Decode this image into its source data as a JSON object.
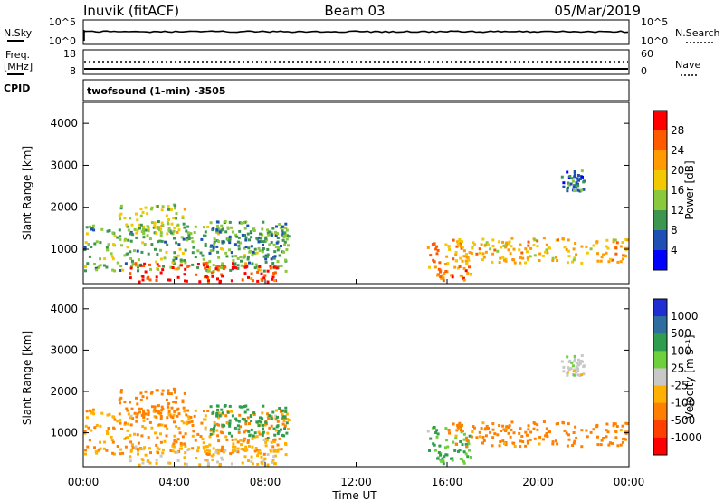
{
  "header": {
    "station": "Inuvik (fitACF)",
    "beam": "Beam 03",
    "date": "05/Mar/2019"
  },
  "noise_panel": {
    "left_label": "N.Sky",
    "right_label": "N.Search",
    "left_ticks": [
      "10^5",
      "10^0"
    ],
    "right_ticks": [
      "10^5",
      "10^0"
    ]
  },
  "freq_panel": {
    "left_label_1": "Freq.",
    "left_label_2": "[MHz]",
    "right_label": "Nave",
    "left_ticks": [
      "18",
      "8"
    ],
    "right_ticks": [
      "60",
      "0"
    ]
  },
  "cpid": {
    "label": "CPID",
    "text": "twofsound (1-min) -3505"
  },
  "power_colorbar": {
    "label": "Power [dB]",
    "ticks": [
      "28",
      "24",
      "20",
      "16",
      "12",
      "8",
      "4"
    ],
    "colors": [
      "#ff0000",
      "#ff5a00",
      "#ff9a00",
      "#f2c800",
      "#8ac83c",
      "#3c9650",
      "#1e4fb4",
      "#0000ff"
    ]
  },
  "velocity_colorbar": {
    "label": "Velocity [m s⁻¹]",
    "ticks": [
      "1000",
      "500",
      "100",
      "25",
      "-25",
      "-100",
      "-500",
      "-1000"
    ],
    "colors": [
      "#1e2ed2",
      "#2e6e9e",
      "#2e9e4e",
      "#6ed03c",
      "#c8c8c8",
      "#ffb000",
      "#ff8000",
      "#ff4000",
      "#ff0000"
    ]
  },
  "chart_data": {
    "type": "heatmap",
    "xlabel": "Time UT",
    "ylabel": "Slant Range [km]",
    "x_tick_labels": [
      "00:00",
      "04:00",
      "08:00",
      "12:00",
      "16:00",
      "20:00",
      "00:00"
    ],
    "y_tick_labels": [
      "1000",
      "2000",
      "3000",
      "4000"
    ],
    "xlim_hours": [
      0,
      24
    ],
    "ylim_km": [
      180,
      4500
    ],
    "panels": [
      "Power [dB]",
      "Velocity [m s⁻¹]"
    ],
    "scatter_regions": [
      {
        "t0": 0.0,
        "t1": 9.0,
        "r0": 500,
        "r1": 1600,
        "power": 12,
        "velocity": -100
      },
      {
        "t0": 1.5,
        "t1": 4.5,
        "r0": 1400,
        "r1": 2100,
        "power": 16,
        "velocity": -300
      },
      {
        "t0": 2.0,
        "t1": 8.5,
        "r0": 250,
        "r1": 700,
        "power": 28,
        "velocity": -40
      },
      {
        "t0": 5.5,
        "t1": 9.0,
        "r0": 900,
        "r1": 1700,
        "power": 10,
        "velocity": 300
      },
      {
        "t0": 15.0,
        "t1": 17.0,
        "r0": 250,
        "r1": 1200,
        "power": 24,
        "velocity": 100
      },
      {
        "t0": 16.0,
        "t1": 24.0,
        "r0": 700,
        "r1": 1300,
        "power": 20,
        "velocity": -200
      },
      {
        "t0": 21.0,
        "t1": 22.0,
        "r0": 2400,
        "r1": 2900,
        "power": 8,
        "velocity": 0
      }
    ]
  }
}
